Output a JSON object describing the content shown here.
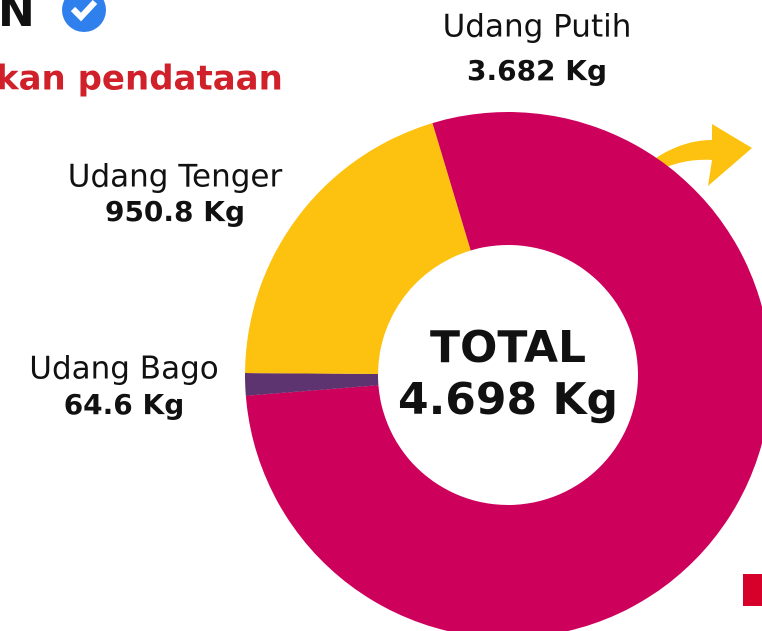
{
  "header": {
    "title": "N",
    "subtitle": "kan pendataan"
  },
  "chart_data": {
    "type": "pie",
    "donut": true,
    "categories": [
      "Udang Putih",
      "Udang Bago",
      "Udang Tenger"
    ],
    "values": [
      3682,
      64.6,
      950.8
    ],
    "value_labels": [
      "3.682 Kg",
      "64.6 Kg",
      "950.8 Kg"
    ],
    "colors": [
      "#cd005b",
      "#5e3470",
      "#fdc20f"
    ],
    "center_title": "TOTAL",
    "center_text": "4.698 Kg"
  }
}
